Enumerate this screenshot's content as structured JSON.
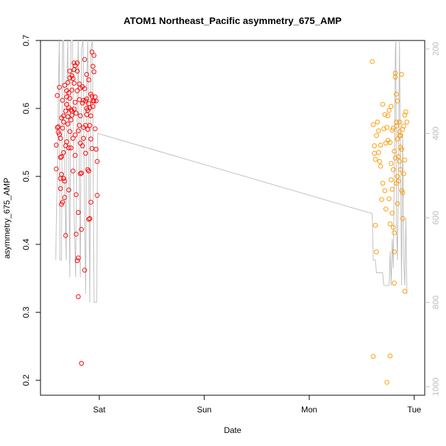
{
  "chart_data": {
    "type": "scatter",
    "title": "ATOM1 Northeast_Pacific asymmetry_675_AMP",
    "xlabel": "Date",
    "ylabel": "asymmetry_675_AMP",
    "x_tick_labels": [
      "Sat",
      "Sun",
      "Mon",
      "Tue"
    ],
    "x_tick_days": [
      1,
      2,
      3,
      4
    ],
    "xlim_days": [
      0.44,
      4.1
    ],
    "ylim": [
      0.178,
      0.7
    ],
    "y_ticks": [
      0.2,
      0.3,
      0.4,
      0.5,
      0.6,
      0.7
    ],
    "y_tick_labels": [
      "0.2",
      "0.3",
      "0.4",
      "0.5",
      "0.6",
      "0.7"
    ],
    "right_axis": {
      "ylim": [
        1020,
        180
      ],
      "ticks": [
        200,
        400,
        600,
        800,
        1000
      ],
      "tick_labels": [
        "200",
        "400",
        "600",
        "800",
        "1000"
      ],
      "color": "#bebebe"
    },
    "grid": false,
    "legend": "none",
    "series": [
      {
        "color": "#ff0000",
        "marker": "open-circle",
        "points": [
          [
            0.59,
            0.511
          ],
          [
            0.59,
            0.546
          ],
          [
            0.6,
            0.619
          ],
          [
            0.61,
            0.565
          ],
          [
            0.61,
            0.573
          ],
          [
            0.62,
            0.631
          ],
          [
            0.63,
            0.556
          ],
          [
            0.63,
            0.528
          ],
          [
            0.63,
            0.497
          ],
          [
            0.64,
            0.459
          ],
          [
            0.64,
            0.503
          ],
          [
            0.64,
            0.586
          ],
          [
            0.65,
            0.571
          ],
          [
            0.65,
            0.612
          ],
          [
            0.66,
            0.535
          ],
          [
            0.66,
            0.589
          ],
          [
            0.67,
            0.634
          ],
          [
            0.67,
            0.469
          ],
          [
            0.67,
            0.493
          ],
          [
            0.68,
            0.413
          ],
          [
            0.68,
            0.596
          ],
          [
            0.69,
            0.551
          ],
          [
            0.69,
            0.606
          ],
          [
            0.7,
            0.638
          ],
          [
            0.7,
            0.588
          ],
          [
            0.71,
            0.623
          ],
          [
            0.71,
            0.48
          ],
          [
            0.72,
            0.655
          ],
          [
            0.72,
            0.615
          ],
          [
            0.72,
            0.566
          ],
          [
            0.73,
            0.542
          ],
          [
            0.73,
            0.598
          ],
          [
            0.74,
            0.648
          ],
          [
            0.74,
            0.627
          ],
          [
            0.74,
            0.596
          ],
          [
            0.75,
            0.556
          ],
          [
            0.75,
            0.508
          ],
          [
            0.76,
            0.657
          ],
          [
            0.76,
            0.667
          ],
          [
            0.76,
            0.637
          ],
          [
            0.77,
            0.561
          ],
          [
            0.77,
            0.531
          ],
          [
            0.78,
            0.593
          ],
          [
            0.78,
            0.473
          ],
          [
            0.78,
            0.415
          ],
          [
            0.79,
            0.667
          ],
          [
            0.79,
            0.655
          ],
          [
            0.79,
            0.626
          ],
          [
            0.8,
            0.447
          ],
          [
            0.8,
            0.38
          ],
          [
            0.8,
            0.323
          ],
          [
            0.81,
            0.613
          ],
          [
            0.81,
            0.575
          ],
          [
            0.82,
            0.589
          ],
          [
            0.82,
            0.549
          ],
          [
            0.82,
            0.504
          ],
          [
            0.83,
            0.422
          ],
          [
            0.83,
            0.225
          ],
          [
            0.84,
            0.632
          ],
          [
            0.84,
            0.608
          ],
          [
            0.85,
            0.572
          ],
          [
            0.85,
            0.556
          ],
          [
            0.86,
            0.672
          ],
          [
            0.86,
            0.629
          ],
          [
            0.87,
            0.611
          ],
          [
            0.87,
            0.534
          ],
          [
            0.88,
            0.65
          ],
          [
            0.88,
            0.614
          ],
          [
            0.89,
            0.597
          ],
          [
            0.89,
            0.569
          ],
          [
            0.9,
            0.642
          ],
          [
            0.9,
            0.508
          ],
          [
            0.9,
            0.437
          ],
          [
            0.91,
            0.601
          ],
          [
            0.91,
            0.575
          ],
          [
            0.92,
            0.621
          ],
          [
            0.92,
            0.555
          ],
          [
            0.93,
            0.683
          ],
          [
            0.93,
            0.618
          ],
          [
            0.93,
            0.541
          ],
          [
            0.94,
            0.662
          ],
          [
            0.94,
            0.603
          ],
          [
            0.95,
            0.678
          ],
          [
            0.95,
            0.654
          ],
          [
            0.96,
            0.617
          ],
          [
            0.96,
            0.57
          ],
          [
            0.97,
            0.611
          ],
          [
            0.97,
            0.54
          ],
          [
            0.98,
            0.522
          ],
          [
            0.98,
            0.472
          ],
          [
            0.64,
            0.529
          ],
          [
            0.66,
            0.497
          ],
          [
            0.69,
            0.626
          ],
          [
            0.71,
            0.542
          ],
          [
            0.73,
            0.583
          ],
          [
            0.75,
            0.644
          ],
          [
            0.77,
            0.609
          ],
          [
            0.8,
            0.567
          ],
          [
            0.82,
            0.63
          ],
          [
            0.84,
            0.545
          ],
          [
            0.86,
            0.362
          ],
          [
            0.88,
            0.591
          ],
          [
            0.9,
            0.607
          ],
          [
            0.92,
            0.462
          ],
          [
            0.95,
            0.611
          ],
          [
            0.63,
            0.482
          ],
          [
            0.65,
            0.462
          ],
          [
            0.68,
            0.545
          ],
          [
            0.7,
            0.577
          ],
          [
            0.72,
            0.645
          ],
          [
            0.76,
            0.599
          ],
          [
            0.79,
            0.376
          ],
          [
            0.83,
            0.505
          ],
          [
            0.87,
            0.575
          ],
          [
            0.89,
            0.51
          ],
          [
            0.91,
            0.438
          ],
          [
            0.6,
            0.572
          ],
          [
            0.62,
            0.562
          ],
          [
            0.66,
            0.58
          ],
          [
            0.69,
            0.617
          ],
          [
            0.71,
            0.601
          ],
          [
            0.74,
            0.59
          ],
          [
            0.77,
            0.663
          ],
          [
            0.81,
            0.636
          ],
          [
            0.85,
            0.612
          ],
          [
            0.88,
            0.6
          ],
          [
            0.92,
            0.589
          ],
          [
            0.94,
            0.611
          ]
        ]
      },
      {
        "color": "#ff9900",
        "marker": "open-circle",
        "points": [
          [
            3.6,
            0.669
          ],
          [
            3.61,
            0.576
          ],
          [
            3.61,
            0.235
          ],
          [
            3.62,
            0.534
          ],
          [
            3.63,
            0.428
          ],
          [
            3.63,
            0.525
          ],
          [
            3.64,
            0.389
          ],
          [
            3.65,
            0.58
          ],
          [
            3.66,
            0.567
          ],
          [
            3.67,
            0.522
          ],
          [
            3.68,
            0.515
          ],
          [
            3.69,
            0.466
          ],
          [
            3.7,
            0.606
          ],
          [
            3.71,
            0.57
          ],
          [
            3.72,
            0.479
          ],
          [
            3.73,
            0.549
          ],
          [
            3.74,
            0.197
          ],
          [
            3.75,
            0.589
          ],
          [
            3.75,
            0.553
          ],
          [
            3.76,
            0.467
          ],
          [
            3.77,
            0.43
          ],
          [
            3.77,
            0.236
          ],
          [
            3.78,
            0.603
          ],
          [
            3.78,
            0.519
          ],
          [
            3.79,
            0.481
          ],
          [
            3.8,
            0.571
          ],
          [
            3.8,
            0.425
          ],
          [
            3.81,
            0.343
          ],
          [
            3.81,
            0.389
          ],
          [
            3.82,
            0.646
          ],
          [
            3.82,
            0.652
          ],
          [
            3.83,
            0.621
          ],
          [
            3.83,
            0.574
          ],
          [
            3.83,
            0.49
          ],
          [
            3.84,
            0.555
          ],
          [
            3.84,
            0.5
          ],
          [
            3.85,
            0.529
          ],
          [
            3.86,
            0.522
          ],
          [
            3.86,
            0.566
          ],
          [
            3.87,
            0.543
          ],
          [
            3.88,
            0.479
          ],
          [
            3.88,
            0.65
          ],
          [
            3.89,
            0.569
          ],
          [
            3.89,
            0.438
          ],
          [
            3.9,
            0.574
          ],
          [
            3.91,
            0.59
          ],
          [
            3.91,
            0.524
          ],
          [
            3.92,
            0.595
          ],
          [
            3.93,
            0.58
          ],
          [
            3.79,
            0.568
          ],
          [
            3.81,
            0.537
          ],
          [
            3.84,
            0.611
          ],
          [
            3.86,
            0.58
          ],
          [
            3.88,
            0.54
          ],
          [
            3.72,
            0.591
          ],
          [
            3.68,
            0.546
          ],
          [
            3.64,
            0.56
          ],
          [
            3.76,
            0.597
          ],
          [
            3.79,
            0.446
          ],
          [
            3.82,
            0.527
          ],
          [
            3.85,
            0.493
          ],
          [
            3.87,
            0.51
          ],
          [
            3.9,
            0.504
          ],
          [
            3.74,
            0.572
          ],
          [
            3.77,
            0.55
          ],
          [
            3.8,
            0.51
          ],
          [
            3.83,
            0.58
          ],
          [
            3.86,
            0.56
          ],
          [
            3.89,
            0.476
          ],
          [
            3.91,
            0.331
          ],
          [
            3.62,
            0.545
          ],
          [
            3.66,
            0.535
          ],
          [
            3.7,
            0.49
          ],
          [
            3.73,
            0.452
          ],
          [
            3.78,
            0.495
          ],
          [
            3.81,
            0.417
          ],
          [
            3.84,
            0.46
          ],
          [
            3.87,
            0.56
          ]
        ]
      }
    ],
    "background_line": {
      "color": "#bebebe",
      "axis": "right",
      "points": [
        [
          0.585,
          700
        ],
        [
          0.6,
          500
        ],
        [
          0.61,
          300
        ],
        [
          0.62,
          180
        ],
        [
          0.625,
          700
        ],
        [
          0.64,
          700
        ],
        [
          0.65,
          180
        ],
        [
          0.66,
          180
        ],
        [
          0.67,
          500
        ],
        [
          0.685,
          700
        ],
        [
          0.69,
          300
        ],
        [
          0.7,
          180
        ],
        [
          0.71,
          500
        ],
        [
          0.72,
          740
        ],
        [
          0.73,
          180
        ],
        [
          0.745,
          180
        ],
        [
          0.76,
          600
        ],
        [
          0.775,
          740
        ],
        [
          0.79,
          300
        ],
        [
          0.8,
          180
        ],
        [
          0.81,
          500
        ],
        [
          0.82,
          740
        ],
        [
          0.83,
          200
        ],
        [
          0.845,
          180
        ],
        [
          0.86,
          600
        ],
        [
          0.87,
          780
        ],
        [
          0.88,
          300
        ],
        [
          0.89,
          180
        ],
        [
          0.9,
          500
        ],
        [
          0.91,
          800
        ],
        [
          0.92,
          200
        ],
        [
          0.935,
          180
        ],
        [
          0.95,
          800
        ],
        [
          0.96,
          800
        ],
        [
          0.975,
          800
        ],
        [
          0.985,
          400
        ],
        [
          3.6,
          590
        ],
        [
          3.61,
          700
        ],
        [
          3.63,
          700
        ],
        [
          3.64,
          730
        ],
        [
          3.7,
          730
        ],
        [
          3.71,
          760
        ],
        [
          3.76,
          760
        ],
        [
          3.77,
          680
        ],
        [
          3.78,
          760
        ],
        [
          3.79,
          650
        ],
        [
          3.8,
          720
        ],
        [
          3.81,
          500
        ],
        [
          3.82,
          200
        ],
        [
          3.825,
          180
        ],
        [
          3.83,
          600
        ],
        [
          3.84,
          700
        ],
        [
          3.85,
          500
        ],
        [
          3.86,
          180
        ],
        [
          3.87,
          500
        ],
        [
          3.88,
          760
        ],
        [
          3.89,
          400
        ],
        [
          3.9,
          700
        ],
        [
          3.91,
          760
        ],
        [
          3.92,
          600
        ],
        [
          3.93,
          780
        ]
      ]
    }
  }
}
